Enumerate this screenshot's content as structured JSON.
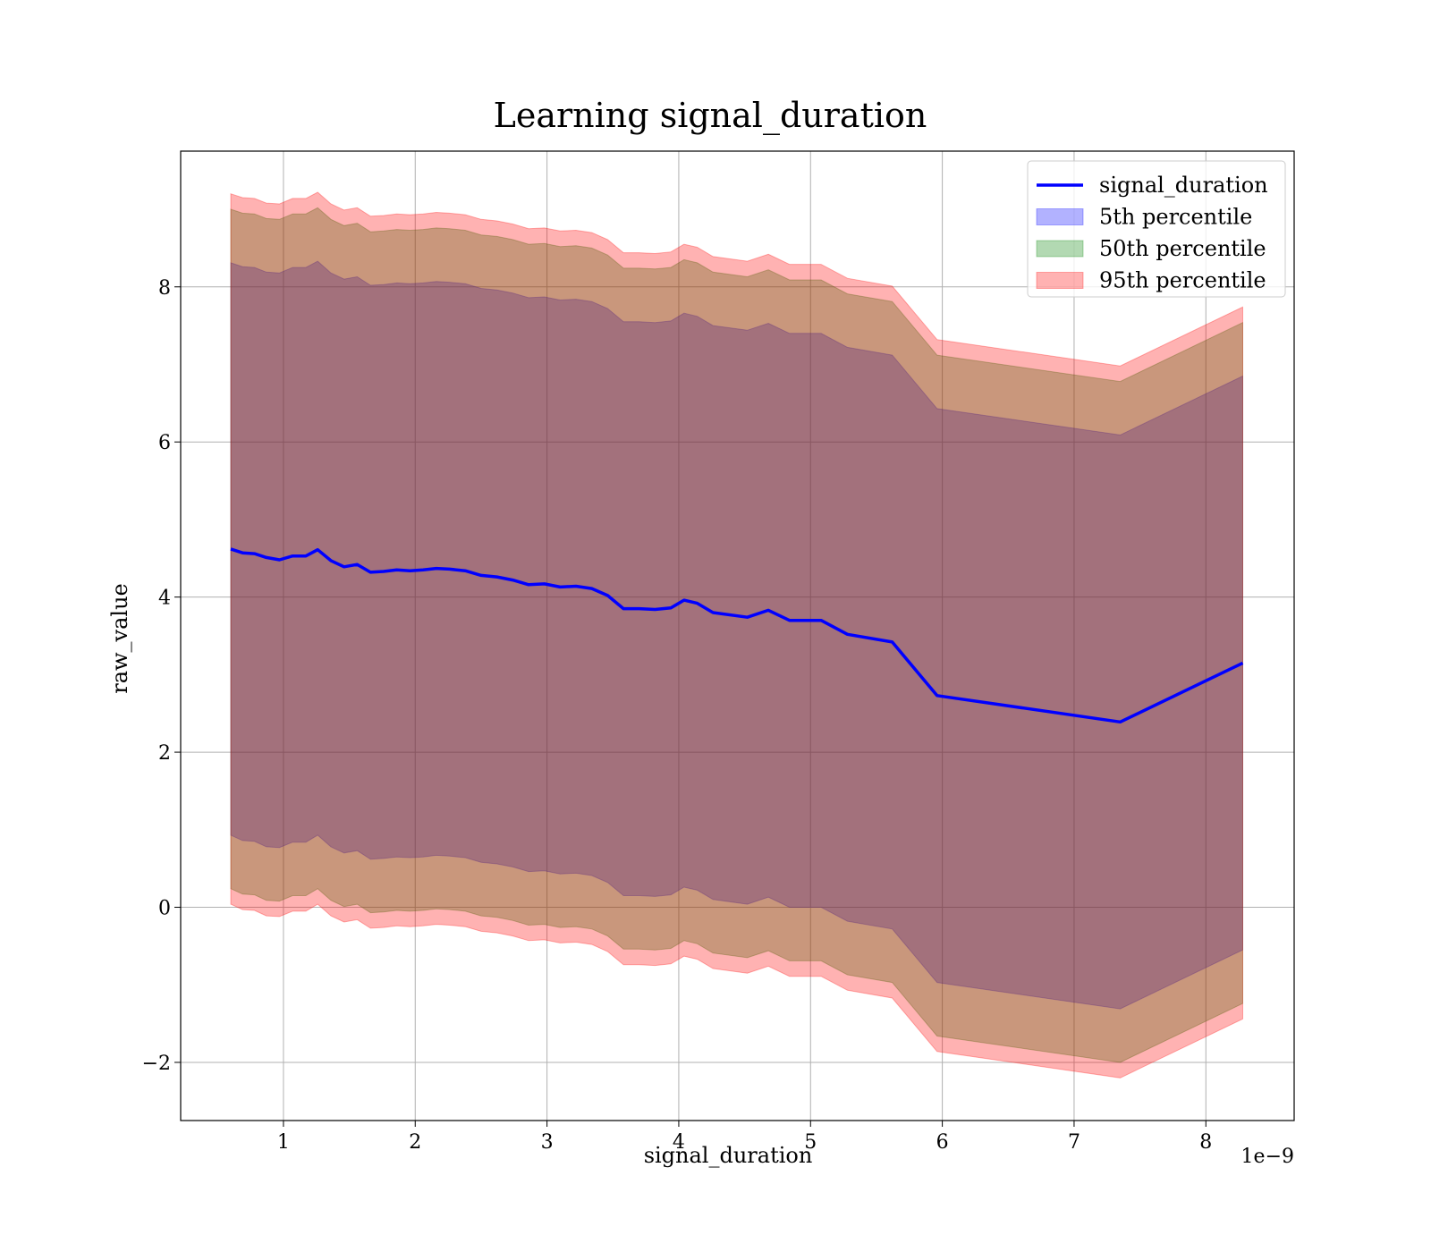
{
  "chart_data": {
    "type": "area",
    "title": "Learning signal_duration",
    "xlabel": "signal_duration",
    "ylabel": "raw_value",
    "x_offset_label": "1e−9",
    "xlim": [
      0.22,
      8.67
    ],
    "ylim": [
      -2.75,
      9.75
    ],
    "x_ticks": [
      1,
      2,
      3,
      4,
      5,
      6,
      7,
      8
    ],
    "x_tick_labels": [
      "1",
      "2",
      "3",
      "4",
      "5",
      "6",
      "7",
      "8"
    ],
    "y_ticks": [
      -2,
      0,
      2,
      4,
      6,
      8
    ],
    "y_tick_labels": [
      "−2",
      "0",
      "2",
      "4",
      "6",
      "8"
    ],
    "grid": true,
    "legend_position": "top-right",
    "x": [
      0.6,
      0.69,
      0.78,
      0.87,
      0.97,
      1.07,
      1.17,
      1.26,
      1.36,
      1.46,
      1.56,
      1.66,
      1.76,
      1.86,
      1.96,
      2.06,
      2.16,
      2.26,
      2.38,
      2.5,
      2.62,
      2.74,
      2.86,
      2.98,
      3.1,
      3.22,
      3.34,
      3.46,
      3.58,
      3.7,
      3.82,
      3.94,
      4.04,
      4.14,
      4.26,
      4.52,
      4.68,
      4.84,
      5.08,
      5.28,
      5.62,
      5.96,
      7.35,
      8.28
    ],
    "series": [
      {
        "name": "signal_duration",
        "type": "line",
        "color": "#0000ff",
        "values": [
          4.62,
          4.57,
          4.56,
          4.51,
          4.48,
          4.53,
          4.53,
          4.61,
          4.47,
          4.39,
          4.42,
          4.32,
          4.33,
          4.35,
          4.34,
          4.35,
          4.37,
          4.36,
          4.34,
          4.28,
          4.26,
          4.22,
          4.16,
          4.17,
          4.13,
          4.14,
          4.11,
          4.02,
          3.85,
          3.85,
          3.84,
          3.86,
          3.96,
          3.92,
          3.8,
          3.74,
          3.83,
          3.7,
          3.7,
          3.52,
          3.42,
          2.73,
          2.39,
          3.15
        ]
      },
      {
        "name": "5th percentile",
        "type": "band",
        "color": "#0000ff",
        "lower": [
          0.93,
          0.86,
          0.85,
          0.78,
          0.77,
          0.84,
          0.84,
          0.93,
          0.78,
          0.7,
          0.73,
          0.62,
          0.63,
          0.65,
          0.64,
          0.65,
          0.67,
          0.66,
          0.64,
          0.58,
          0.56,
          0.52,
          0.46,
          0.47,
          0.43,
          0.44,
          0.41,
          0.32,
          0.15,
          0.15,
          0.14,
          0.16,
          0.26,
          0.22,
          0.1,
          0.04,
          0.13,
          0.0,
          0.0,
          -0.18,
          -0.28,
          -0.97,
          -1.31,
          -0.55
        ],
        "upper": [
          8.31,
          8.26,
          8.25,
          8.19,
          8.18,
          8.25,
          8.25,
          8.33,
          8.18,
          8.1,
          8.13,
          8.02,
          8.03,
          8.05,
          8.04,
          8.05,
          8.07,
          8.06,
          8.04,
          7.98,
          7.96,
          7.92,
          7.86,
          7.87,
          7.83,
          7.84,
          7.81,
          7.72,
          7.55,
          7.55,
          7.54,
          7.56,
          7.66,
          7.62,
          7.5,
          7.44,
          7.53,
          7.4,
          7.4,
          7.22,
          7.12,
          6.43,
          6.09,
          6.85
        ]
      },
      {
        "name": "50th percentile",
        "type": "band",
        "color": "#008000",
        "lower": [
          0.24,
          0.17,
          0.16,
          0.09,
          0.08,
          0.15,
          0.15,
          0.24,
          0.09,
          0.01,
          0.04,
          -0.07,
          -0.06,
          -0.04,
          -0.05,
          -0.04,
          -0.02,
          -0.03,
          -0.05,
          -0.11,
          -0.13,
          -0.17,
          -0.23,
          -0.22,
          -0.26,
          -0.25,
          -0.28,
          -0.37,
          -0.54,
          -0.54,
          -0.55,
          -0.53,
          -0.43,
          -0.47,
          -0.59,
          -0.65,
          -0.56,
          -0.69,
          -0.69,
          -0.87,
          -0.97,
          -1.66,
          -2.0,
          -1.24
        ],
        "upper": [
          9.0,
          8.95,
          8.94,
          8.88,
          8.87,
          8.94,
          8.94,
          9.02,
          8.87,
          8.79,
          8.82,
          8.71,
          8.72,
          8.74,
          8.73,
          8.74,
          8.76,
          8.75,
          8.73,
          8.67,
          8.65,
          8.61,
          8.55,
          8.56,
          8.52,
          8.53,
          8.5,
          8.41,
          8.24,
          8.24,
          8.23,
          8.25,
          8.35,
          8.31,
          8.19,
          8.13,
          8.22,
          8.09,
          8.09,
          7.91,
          7.81,
          7.12,
          6.78,
          7.54
        ]
      },
      {
        "name": "95th percentile",
        "type": "band",
        "color": "#ff0000",
        "lower": [
          0.04,
          -0.03,
          -0.04,
          -0.11,
          -0.12,
          -0.05,
          -0.05,
          0.04,
          -0.11,
          -0.19,
          -0.16,
          -0.27,
          -0.26,
          -0.24,
          -0.25,
          -0.24,
          -0.22,
          -0.23,
          -0.25,
          -0.31,
          -0.33,
          -0.37,
          -0.43,
          -0.42,
          -0.46,
          -0.45,
          -0.48,
          -0.57,
          -0.74,
          -0.74,
          -0.75,
          -0.73,
          -0.63,
          -0.67,
          -0.79,
          -0.85,
          -0.76,
          -0.89,
          -0.89,
          -1.07,
          -1.17,
          -1.86,
          -2.2,
          -1.44
        ],
        "upper": [
          9.2,
          9.15,
          9.14,
          9.08,
          9.07,
          9.14,
          9.14,
          9.22,
          9.07,
          8.99,
          9.02,
          8.91,
          8.92,
          8.94,
          8.93,
          8.94,
          8.96,
          8.95,
          8.93,
          8.87,
          8.85,
          8.81,
          8.75,
          8.76,
          8.72,
          8.73,
          8.7,
          8.61,
          8.44,
          8.44,
          8.43,
          8.45,
          8.55,
          8.51,
          8.39,
          8.33,
          8.42,
          8.29,
          8.29,
          8.11,
          8.01,
          7.32,
          6.98,
          7.74
        ]
      }
    ],
    "legend": [
      {
        "label": "signal_duration",
        "kind": "line",
        "color": "#0000ff"
      },
      {
        "label": "5th percentile",
        "kind": "patch",
        "color": "#0000ff"
      },
      {
        "label": "50th percentile",
        "kind": "patch",
        "color": "#008000"
      },
      {
        "label": "95th percentile",
        "kind": "patch",
        "color": "#ff0000"
      }
    ]
  }
}
